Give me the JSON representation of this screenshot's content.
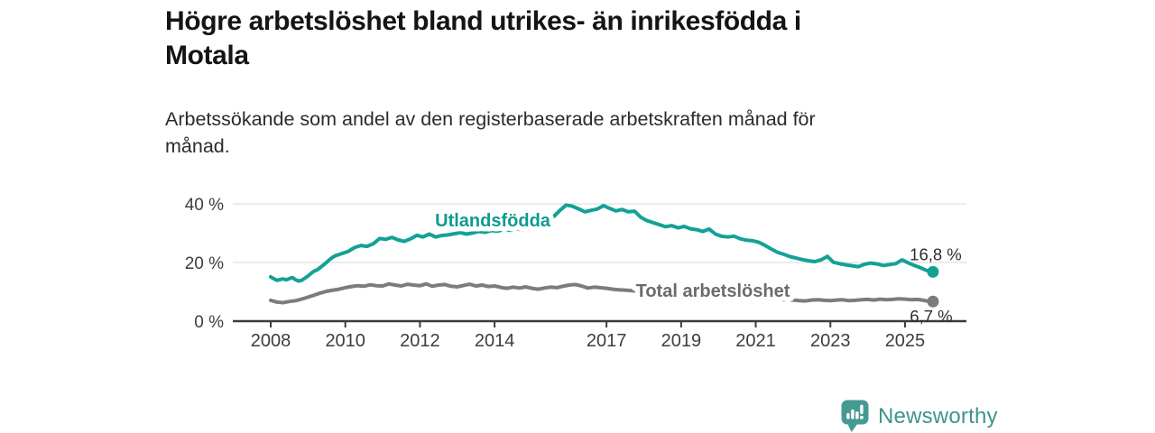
{
  "header": {
    "title_lines": [
      "Högre arbetslöshet bland utrikes- än inrikesfödda i",
      "Motala"
    ],
    "subtitle_lines": [
      "Arbetssökande som andel av den registerbaserade arbetskraften månad för",
      "månad."
    ]
  },
  "footer": {
    "brand": "Newsworthy",
    "logo_icon": "bar-chart-speech-bubble-icon"
  },
  "colors": {
    "accent_teal": "#13a197",
    "gray_series": "#7c7c7c",
    "teal_label": "#0f9a90",
    "gray_label": "#6b6b6b",
    "value_label": "#2e2e2e",
    "axis": "#3c3c3c",
    "grid": "#e0e0e0",
    "brand_teal": "#3f948e",
    "title_text": "#141414",
    "subtitle_text": "#2b2b2b"
  },
  "chart_data": {
    "type": "line",
    "title": "Högre arbetslöshet bland utrikes- än inrikesfödda i Motala",
    "subtitle": "Arbetssökande som andel av den registerbaserade arbetskraften månad för månad.",
    "unit": "%",
    "x_base": 2008,
    "xlim": [
      2007,
      2026.6
    ],
    "ylim": [
      0,
      43
    ],
    "grid": true,
    "legend_position": "inline-labels",
    "y_ticks": [
      {
        "value": 0,
        "label": "0 %"
      },
      {
        "value": 20,
        "label": "20 %"
      },
      {
        "value": 40,
        "label": "40 %"
      }
    ],
    "x_ticks": [
      {
        "value": 2008,
        "label": "2008"
      },
      {
        "value": 2010,
        "label": "2010"
      },
      {
        "value": 2012,
        "label": "2012"
      },
      {
        "value": 2014,
        "label": "2014"
      },
      {
        "value": 2017,
        "label": "2017"
      },
      {
        "value": 2019,
        "label": "2019"
      },
      {
        "value": 2021,
        "label": "2021"
      },
      {
        "value": 2023,
        "label": "2023"
      },
      {
        "value": 2025,
        "label": "2025"
      }
    ],
    "series": [
      {
        "id": "utlandsfodda",
        "name": "Utlandsfödda",
        "color": "#13a197",
        "label_color": "#0f9a90",
        "label": {
          "text": "Utlandsfödda",
          "x": 2013.95,
          "y": 32.3
        },
        "end_label": "16,8 %",
        "end_value": 16.8,
        "end_label_offset": [
          3,
          -13
        ],
        "points": [
          [
            2008.0,
            15.1
          ],
          [
            2008.08,
            14.5
          ],
          [
            2008.17,
            13.9
          ],
          [
            2008.25,
            14.2
          ],
          [
            2008.33,
            14.4
          ],
          [
            2008.42,
            14.1
          ],
          [
            2008.5,
            14.5
          ],
          [
            2008.58,
            14.9
          ],
          [
            2008.67,
            14.1
          ],
          [
            2008.75,
            13.7
          ],
          [
            2008.83,
            13.9
          ],
          [
            2008.92,
            14.7
          ],
          [
            2009.0,
            15.4
          ],
          [
            2009.08,
            16.3
          ],
          [
            2009.17,
            17.1
          ],
          [
            2009.25,
            17.5
          ],
          [
            2009.33,
            18.3
          ],
          [
            2009.42,
            19.2
          ],
          [
            2009.5,
            20.1
          ],
          [
            2009.58,
            21.0
          ],
          [
            2009.67,
            21.9
          ],
          [
            2009.75,
            22.4
          ],
          [
            2009.83,
            22.7
          ],
          [
            2009.92,
            23.1
          ],
          [
            2010.08,
            23.8
          ],
          [
            2010.25,
            25.1
          ],
          [
            2010.42,
            25.8
          ],
          [
            2010.58,
            25.5
          ],
          [
            2010.75,
            26.4
          ],
          [
            2010.92,
            28.2
          ],
          [
            2011.08,
            27.9
          ],
          [
            2011.25,
            28.6
          ],
          [
            2011.42,
            27.7
          ],
          [
            2011.58,
            27.2
          ],
          [
            2011.75,
            28.1
          ],
          [
            2011.92,
            29.3
          ],
          [
            2012.08,
            28.7
          ],
          [
            2012.25,
            29.7
          ],
          [
            2012.42,
            28.7
          ],
          [
            2012.58,
            29.2
          ],
          [
            2012.75,
            29.4
          ],
          [
            2012.92,
            29.8
          ],
          [
            2013.08,
            30.2
          ],
          [
            2013.25,
            29.7
          ],
          [
            2013.42,
            30.1
          ],
          [
            2013.58,
            30.6
          ],
          [
            2013.75,
            30.3
          ],
          [
            2013.92,
            30.9
          ],
          [
            2014.08,
            30.7
          ],
          [
            2014.25,
            31.3
          ],
          [
            2014.42,
            31.0
          ],
          [
            2014.58,
            31.5
          ],
          [
            2014.75,
            31.2
          ],
          [
            2014.92,
            31.9
          ],
          [
            2015.08,
            32.3
          ],
          [
            2015.25,
            32.9
          ],
          [
            2015.42,
            33.8
          ],
          [
            2015.58,
            35.6
          ],
          [
            2015.75,
            37.8
          ],
          [
            2015.92,
            39.6
          ],
          [
            2016.08,
            39.2
          ],
          [
            2016.25,
            38.3
          ],
          [
            2016.42,
            37.3
          ],
          [
            2016.58,
            37.8
          ],
          [
            2016.75,
            38.2
          ],
          [
            2016.92,
            39.4
          ],
          [
            2017.08,
            38.5
          ],
          [
            2017.25,
            37.6
          ],
          [
            2017.42,
            38.1
          ],
          [
            2017.58,
            37.3
          ],
          [
            2017.75,
            37.5
          ],
          [
            2017.92,
            35.4
          ],
          [
            2018.08,
            34.3
          ],
          [
            2018.25,
            33.6
          ],
          [
            2018.42,
            32.9
          ],
          [
            2018.58,
            32.2
          ],
          [
            2018.75,
            32.6
          ],
          [
            2018.92,
            31.8
          ],
          [
            2019.08,
            32.3
          ],
          [
            2019.25,
            31.5
          ],
          [
            2019.42,
            31.2
          ],
          [
            2019.58,
            30.6
          ],
          [
            2019.75,
            31.4
          ],
          [
            2019.92,
            29.7
          ],
          [
            2020.08,
            29.0
          ],
          [
            2020.25,
            28.7
          ],
          [
            2020.42,
            29.0
          ],
          [
            2020.58,
            28.1
          ],
          [
            2020.75,
            27.6
          ],
          [
            2020.92,
            27.4
          ],
          [
            2021.08,
            26.9
          ],
          [
            2021.25,
            25.8
          ],
          [
            2021.42,
            24.6
          ],
          [
            2021.58,
            23.5
          ],
          [
            2021.75,
            22.8
          ],
          [
            2021.92,
            22.0
          ],
          [
            2022.08,
            21.5
          ],
          [
            2022.25,
            21.0
          ],
          [
            2022.42,
            20.6
          ],
          [
            2022.58,
            20.3
          ],
          [
            2022.75,
            20.9
          ],
          [
            2022.92,
            22.1
          ],
          [
            2023.08,
            20.1
          ],
          [
            2023.25,
            19.6
          ],
          [
            2023.42,
            19.2
          ],
          [
            2023.58,
            18.9
          ],
          [
            2023.75,
            18.6
          ],
          [
            2023.92,
            19.4
          ],
          [
            2024.08,
            19.8
          ],
          [
            2024.25,
            19.5
          ],
          [
            2024.42,
            19.0
          ],
          [
            2024.58,
            19.3
          ],
          [
            2024.75,
            19.6
          ],
          [
            2024.92,
            20.9
          ],
          [
            2025.08,
            19.9
          ],
          [
            2025.25,
            19.0
          ],
          [
            2025.42,
            18.2
          ],
          [
            2025.58,
            17.3
          ],
          [
            2025.75,
            16.8
          ]
        ]
      },
      {
        "id": "total",
        "name": "Total arbetslöshet",
        "color": "#7c7c7c",
        "label_color": "#6b6b6b",
        "label": {
          "text": "Total arbetslöshet",
          "x": 2019.85,
          "y": 8.3
        },
        "end_label": "6,7 %",
        "end_value": 6.7,
        "end_label_offset": [
          -2,
          23
        ],
        "points": [
          [
            2008.0,
            7.1
          ],
          [
            2008.17,
            6.5
          ],
          [
            2008.33,
            6.3
          ],
          [
            2008.5,
            6.7
          ],
          [
            2008.67,
            7.0
          ],
          [
            2008.83,
            7.5
          ],
          [
            2009.0,
            8.2
          ],
          [
            2009.17,
            8.9
          ],
          [
            2009.33,
            9.6
          ],
          [
            2009.5,
            10.2
          ],
          [
            2009.67,
            10.6
          ],
          [
            2009.83,
            10.9
          ],
          [
            2010.0,
            11.4
          ],
          [
            2010.17,
            11.8
          ],
          [
            2010.33,
            12.1
          ],
          [
            2010.5,
            11.9
          ],
          [
            2010.67,
            12.4
          ],
          [
            2010.83,
            12.1
          ],
          [
            2011.0,
            12.0
          ],
          [
            2011.17,
            12.7
          ],
          [
            2011.33,
            12.3
          ],
          [
            2011.5,
            12.0
          ],
          [
            2011.67,
            12.6
          ],
          [
            2011.83,
            12.3
          ],
          [
            2012.0,
            12.1
          ],
          [
            2012.17,
            12.7
          ],
          [
            2012.33,
            11.9
          ],
          [
            2012.5,
            12.3
          ],
          [
            2012.67,
            12.5
          ],
          [
            2012.83,
            11.9
          ],
          [
            2013.0,
            11.7
          ],
          [
            2013.17,
            12.2
          ],
          [
            2013.33,
            12.6
          ],
          [
            2013.5,
            12.0
          ],
          [
            2013.67,
            12.3
          ],
          [
            2013.83,
            11.8
          ],
          [
            2014.0,
            12.0
          ],
          [
            2014.17,
            11.5
          ],
          [
            2014.33,
            11.2
          ],
          [
            2014.5,
            11.6
          ],
          [
            2014.67,
            11.3
          ],
          [
            2014.83,
            11.7
          ],
          [
            2015.0,
            11.2
          ],
          [
            2015.17,
            10.9
          ],
          [
            2015.33,
            11.3
          ],
          [
            2015.5,
            11.6
          ],
          [
            2015.67,
            11.4
          ],
          [
            2015.83,
            11.9
          ],
          [
            2016.0,
            12.3
          ],
          [
            2016.17,
            12.5
          ],
          [
            2016.33,
            12.0
          ],
          [
            2016.5,
            11.3
          ],
          [
            2016.67,
            11.6
          ],
          [
            2016.83,
            11.4
          ],
          [
            2017.0,
            11.2
          ],
          [
            2017.17,
            10.9
          ],
          [
            2017.33,
            10.7
          ],
          [
            2017.5,
            10.6
          ],
          [
            2017.75,
            10.3
          ],
          [
            2018.0,
            10.0
          ],
          [
            2018.25,
            9.6
          ],
          [
            2018.5,
            9.3
          ],
          [
            2018.75,
            9.1
          ],
          [
            2019.0,
            8.9
          ],
          [
            2019.25,
            8.7
          ],
          [
            2019.5,
            8.6
          ],
          [
            2019.75,
            8.5
          ],
          [
            2020.0,
            8.7
          ],
          [
            2020.25,
            8.8
          ],
          [
            2020.5,
            8.6
          ],
          [
            2020.75,
            8.3
          ],
          [
            2021.0,
            8.1
          ],
          [
            2021.25,
            7.8
          ],
          [
            2021.5,
            7.5
          ],
          [
            2021.75,
            7.3
          ],
          [
            2022.0,
            7.2
          ],
          [
            2022.17,
            7.0
          ],
          [
            2022.33,
            6.9
          ],
          [
            2022.5,
            7.2
          ],
          [
            2022.67,
            7.3
          ],
          [
            2022.83,
            7.1
          ],
          [
            2023.0,
            7.0
          ],
          [
            2023.17,
            7.2
          ],
          [
            2023.33,
            7.3
          ],
          [
            2023.5,
            7.0
          ],
          [
            2023.67,
            7.1
          ],
          [
            2023.83,
            7.3
          ],
          [
            2024.0,
            7.4
          ],
          [
            2024.17,
            7.2
          ],
          [
            2024.33,
            7.5
          ],
          [
            2024.5,
            7.3
          ],
          [
            2024.67,
            7.4
          ],
          [
            2024.83,
            7.6
          ],
          [
            2025.0,
            7.5
          ],
          [
            2025.17,
            7.3
          ],
          [
            2025.33,
            7.4
          ],
          [
            2025.5,
            7.1
          ],
          [
            2025.58,
            6.9
          ],
          [
            2025.75,
            6.7
          ]
        ]
      }
    ]
  }
}
